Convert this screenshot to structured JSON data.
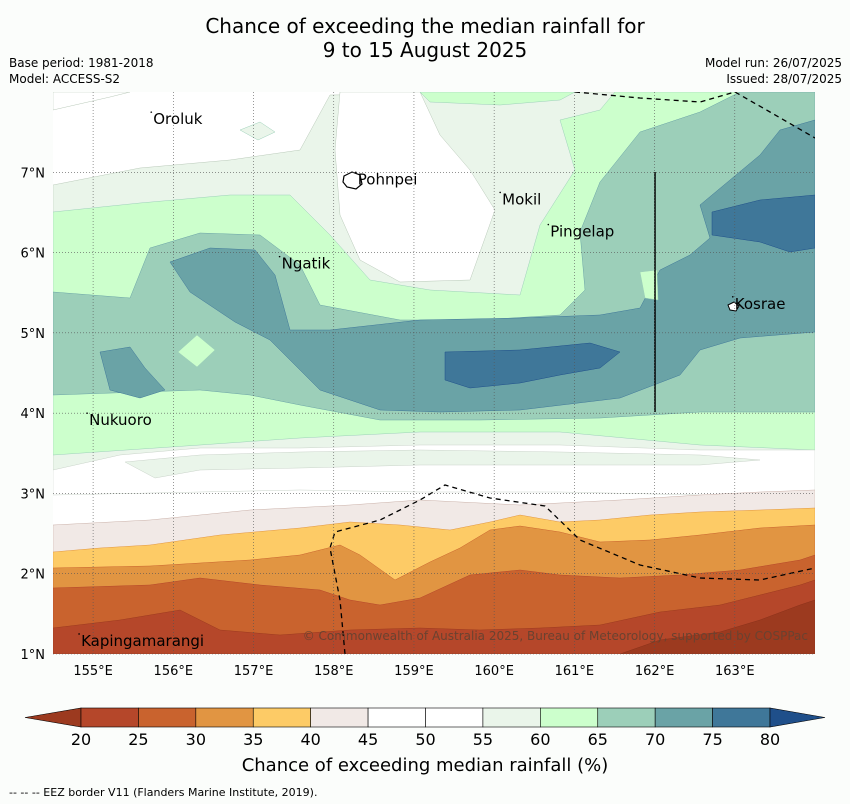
{
  "title": {
    "line1": "Chance of exceeding the median rainfall for",
    "line2": "9 to 15 August 2025"
  },
  "meta": {
    "base_period": "Base period: 1981-2018",
    "model": "Model: ACCESS-S2",
    "model_run": "Model run: 26/07/2025",
    "issued": "Issued: 28/07/2025"
  },
  "axes": {
    "lon_labels": [
      "155°E",
      "156°E",
      "157°E",
      "158°E",
      "159°E",
      "160°E",
      "161°E",
      "162°E",
      "163°E"
    ],
    "lat_labels": [
      "1°N",
      "2°N",
      "3°N",
      "4°N",
      "5°N",
      "6°N",
      "7°N"
    ]
  },
  "places": [
    {
      "name": "Oroluk",
      "lon": 155.75,
      "lat": 7.6
    },
    {
      "name": "Pohnpei",
      "lon": 158.3,
      "lat": 6.85
    },
    {
      "name": "Mokil",
      "lon": 160.1,
      "lat": 6.6
    },
    {
      "name": "Pingelap",
      "lon": 160.7,
      "lat": 6.2
    },
    {
      "name": "Ngatik",
      "lon": 157.35,
      "lat": 5.8
    },
    {
      "name": "Kosrae",
      "lon": 163.0,
      "lat": 5.3
    },
    {
      "name": "Nukuoro",
      "lon": 154.95,
      "lat": 3.85
    },
    {
      "name": "Kapingamarangi",
      "lon": 154.85,
      "lat": 1.1
    }
  ],
  "copyright": "© Commonwealth of Australia 2025, Bureau of Meteorology, supported by COSPPac",
  "colorbar": {
    "ticks": [
      "20",
      "25",
      "30",
      "35",
      "40",
      "45",
      "50",
      "55",
      "60",
      "65",
      "70",
      "75",
      "80"
    ],
    "colors": [
      "#9c3a1f",
      "#b5472a",
      "#c9632e",
      "#e19542",
      "#fdcb66",
      "#f1e9e6",
      "#ffffff",
      "#ffffff",
      "#eaf5ea",
      "#ccffcc",
      "#9ccfb9",
      "#6aa3a6",
      "#3f7799",
      "#1f4f8a"
    ],
    "label": "Chance of exceeding median rainfall (%)"
  },
  "footer": "-- -- -- EEZ border V11 (Flanders Marine Institute, 2019)."
}
